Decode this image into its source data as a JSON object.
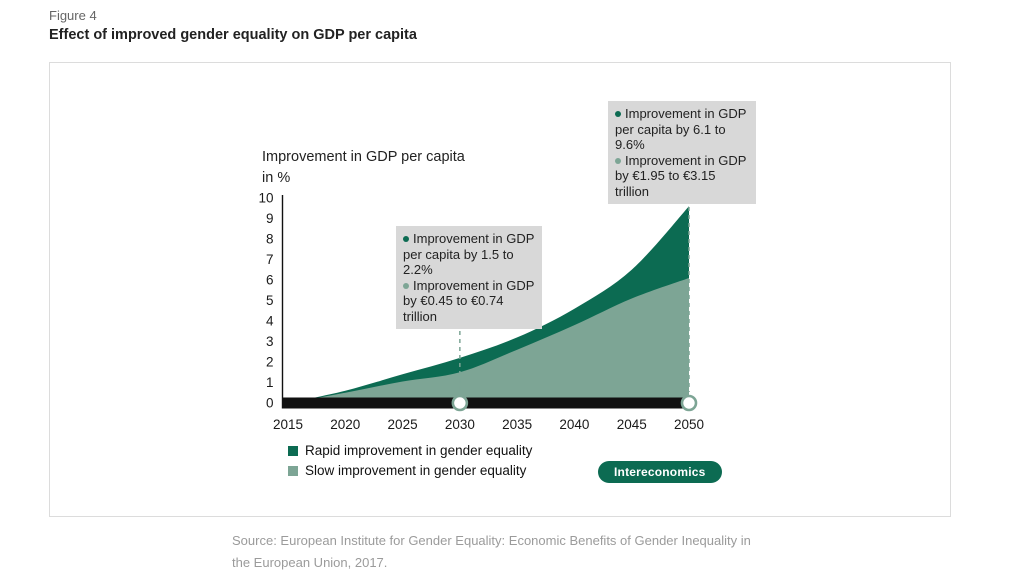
{
  "header": {
    "figure_label": "Figure 4",
    "title": "Effect of improved gender equality on GDP per capita"
  },
  "chart_data": {
    "type": "area",
    "axis_title_line1": "Improvement in GDP per capita",
    "axis_title_line2": "in %",
    "x": [
      2015,
      2020,
      2025,
      2030,
      2035,
      2040,
      2045,
      2050
    ],
    "xtick_labels": [
      "2015",
      "2020",
      "2025",
      "2030",
      "2035",
      "2040",
      "2045",
      "2050"
    ],
    "ylim": [
      0,
      10
    ],
    "yticks": [
      0,
      1,
      2,
      3,
      4,
      5,
      6,
      7,
      8,
      9,
      10
    ],
    "grid": false,
    "legend_position": "bottom-left",
    "series": [
      {
        "name": "Rapid improvement in gender equality",
        "color": "#0c6b52",
        "values": [
          0,
          0.6,
          1.4,
          2.2,
          3.2,
          4.6,
          6.5,
          9.6
        ]
      },
      {
        "name": "Slow improvement in gender equality",
        "color": "#7da595",
        "values": [
          0,
          0.5,
          1.05,
          1.5,
          2.6,
          3.8,
          5.1,
          6.1
        ]
      }
    ],
    "markers_x": [
      2030,
      2050
    ],
    "annotations": [
      {
        "x": 2030,
        "items": [
          "Improvement in GDP per capita by 1.5 to 2.2%",
          "Improvement in GDP by €0.45 to €0.74 trillion"
        ]
      },
      {
        "x": 2050,
        "items": [
          "Improvement in GDP per capita by 6.1 to 9.6%",
          "Improvement in GDP by €1.95 to €3.15 trillion"
        ]
      }
    ]
  },
  "badge": {
    "label": "Intereconomics"
  },
  "source": {
    "line1": "Source: European Institute for Gender Equality: Economic Benefits of Gender Inequality in",
    "line2": "the European Union, 2017."
  }
}
